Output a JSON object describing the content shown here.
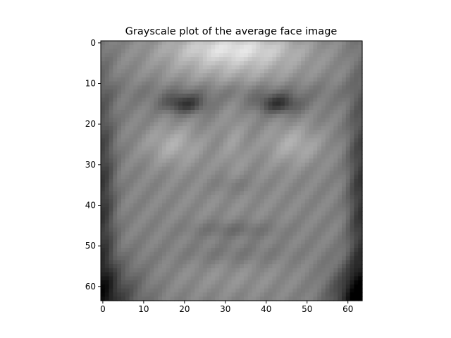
{
  "chart_data": {
    "type": "heatmap",
    "title": "Grayscale plot of the average face image",
    "colormap": "gray",
    "image_size": [
      64,
      64
    ],
    "xlim": [
      -0.5,
      63.5
    ],
    "ylim": [
      63.5,
      -0.5
    ],
    "xticks": [
      0,
      10,
      20,
      30,
      40,
      50,
      60
    ],
    "yticks": [
      0,
      10,
      20,
      30,
      40,
      50,
      60
    ],
    "xlabel": "",
    "ylabel": "",
    "grid": false
  }
}
